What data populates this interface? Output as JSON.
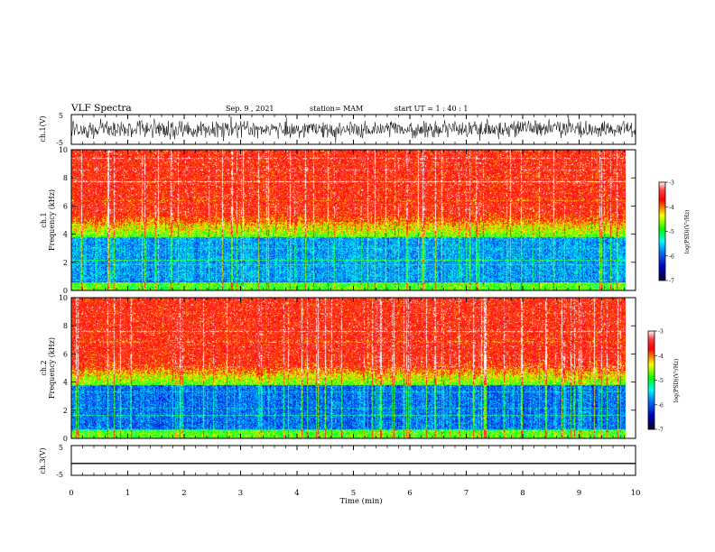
{
  "header": {
    "title": "VLF Spectra",
    "date": "Sep. 9 , 2021",
    "station": "station= MAM",
    "start_ut": "start UT =  1 : 40 : 1"
  },
  "chart_data": [
    {
      "type": "line",
      "name": "ch1-waveform",
      "ylabel": "ch.1(V)",
      "yticks": [
        "5",
        "-5"
      ],
      "ylim": [
        -5,
        5
      ],
      "xlim": [
        0,
        10
      ]
    },
    {
      "type": "heatmap",
      "name": "ch1-spectrogram",
      "ylabel": "ch.1\nFrequency (kHz)",
      "ylabel_lines": [
        "ch.1",
        "Frequency (kHz)"
      ],
      "yticks": [
        "0",
        "2",
        "4",
        "6",
        "8",
        "10"
      ],
      "ylim": [
        0,
        10
      ],
      "xlim": [
        0,
        10
      ],
      "colorbar": {
        "label": "log(PSD)(V²/Hz)",
        "ticks": [
          "-3",
          "-4",
          "-5",
          "-6",
          "-7"
        ],
        "range": [
          -7,
          -3
        ]
      }
    },
    {
      "type": "heatmap",
      "name": "ch2-spectrogram",
      "ylabel_lines": [
        "ch.2",
        "Frequency (kHz)"
      ],
      "yticks": [
        "0",
        "2",
        "4",
        "6",
        "8",
        "10"
      ],
      "ylim": [
        0,
        10
      ],
      "xlim": [
        0,
        10
      ],
      "colorbar": {
        "label": "log(PSD)(V²/Hz)",
        "ticks": [
          "-3",
          "-4",
          "-5",
          "-6",
          "-7"
        ],
        "range": [
          -7,
          -3
        ]
      }
    },
    {
      "type": "line",
      "name": "ch3-waveform",
      "ylabel": "ch.3(V)",
      "yticks": [
        "5",
        "-5"
      ],
      "ylim": [
        -5,
        5
      ],
      "xlim": [
        0,
        10
      ],
      "values": [
        -1,
        -1
      ]
    }
  ],
  "xaxis": {
    "label": "Time (min)",
    "ticks": [
      "0",
      "1",
      "2",
      "3",
      "4",
      "5",
      "6",
      "7",
      "8",
      "9",
      "10"
    ]
  },
  "colors": {
    "colormap": [
      "#000080",
      "#0000ff",
      "#00ffff",
      "#00ff00",
      "#ffff00",
      "#ff0000",
      "#ffffff"
    ]
  }
}
